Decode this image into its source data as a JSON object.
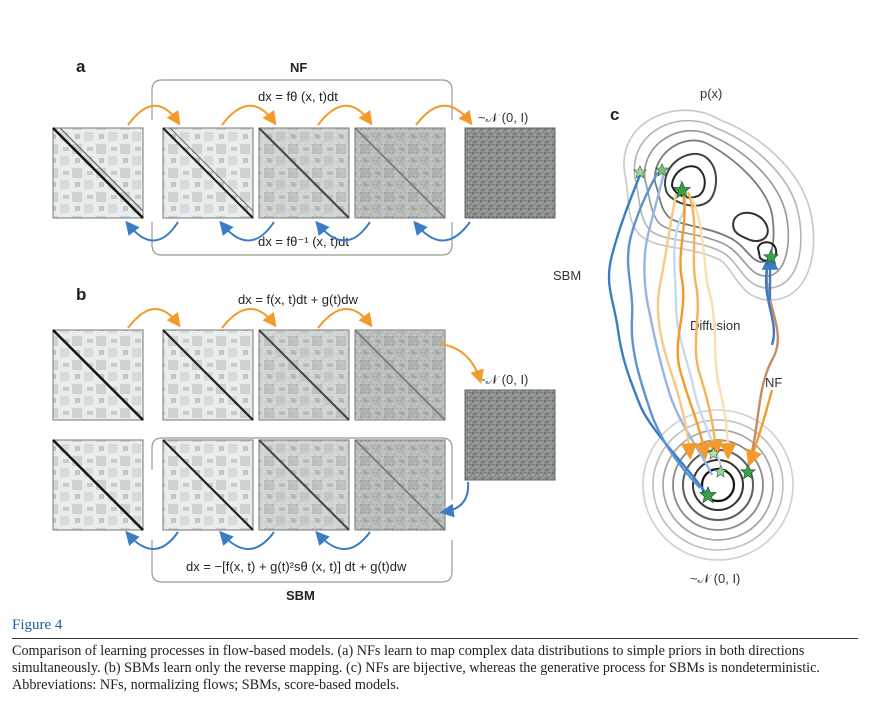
{
  "panels": {
    "a": {
      "letter": "a",
      "title": "NF",
      "forward_eq": "dx = fθ (x, t)dt",
      "inverse_eq": "dx = fθ⁻¹ (x, t)dt",
      "prior": "~𝒩 (0, I)"
    },
    "b": {
      "letter": "b",
      "forward_eq": "dx = f(x, t)dt + g(t)dw",
      "reverse_eq": "dx = −[f(x, t) + g(t)²sθ (x, t)] dt + g(t)dw",
      "title": "SBM",
      "prior": "~𝒩 (0, I)"
    },
    "c": {
      "letter": "c",
      "data_label": "p(x)",
      "sbm_label": "SBM",
      "diffusion_label": "Diffusion",
      "nf_label": "NF",
      "prior": "~𝒩 (0, I)"
    }
  },
  "caption": {
    "title": "Figure 4",
    "text": "Comparison of learning processes in flow-based models. (a) NFs learn to map complex data distributions to simple priors in both directions simultaneously. (b) SBMs learn only the reverse mapping. (c) NFs are bijective, whereas the generative process for SBMs is nondeterministic. Abbreviations: NFs, normalizing flows; SBMs, score-based models."
  },
  "colors": {
    "orange": "#f39a2a",
    "blue": "#3b7cc4",
    "gray": "#999999",
    "star": "#3aa049",
    "title_blue": "#1f5fa0"
  }
}
